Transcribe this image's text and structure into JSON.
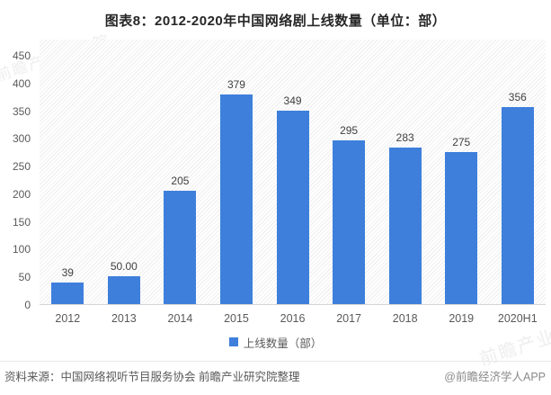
{
  "title": "图表8：2012-2020年中国网络剧上线数量（单位：部）",
  "legend": {
    "label": "上线数量（部）",
    "color": "#3E7FDC"
  },
  "footer": {
    "source": "资料来源：中国网络视听节目服务协会 前瞻产业研究院整理",
    "credit": "@前瞻经济学人APP"
  },
  "watermark": "前瞻产业研究院",
  "chart_data": {
    "type": "bar",
    "title": "图表8：2012-2020年中国网络剧上线数量（单位：部）",
    "series_name": "上线数量（部）",
    "categories": [
      "2012",
      "2013",
      "2014",
      "2015",
      "2016",
      "2017",
      "2018",
      "2019",
      "2020H1"
    ],
    "values": [
      39,
      50,
      205,
      379,
      349,
      295,
      283,
      275,
      356
    ],
    "value_labels": [
      "39",
      "50.00",
      "205",
      "379",
      "349",
      "295",
      "283",
      "275",
      "356"
    ],
    "xlabel": "",
    "ylabel": "",
    "ylim": [
      0,
      450
    ],
    "yticks": [
      0,
      50,
      100,
      150,
      200,
      250,
      300,
      350,
      400,
      450
    ],
    "bar_color": "#3E7FDC",
    "grid": false,
    "legend_position": "bottom",
    "background_pattern": "diagonal-hatch-watermark"
  }
}
